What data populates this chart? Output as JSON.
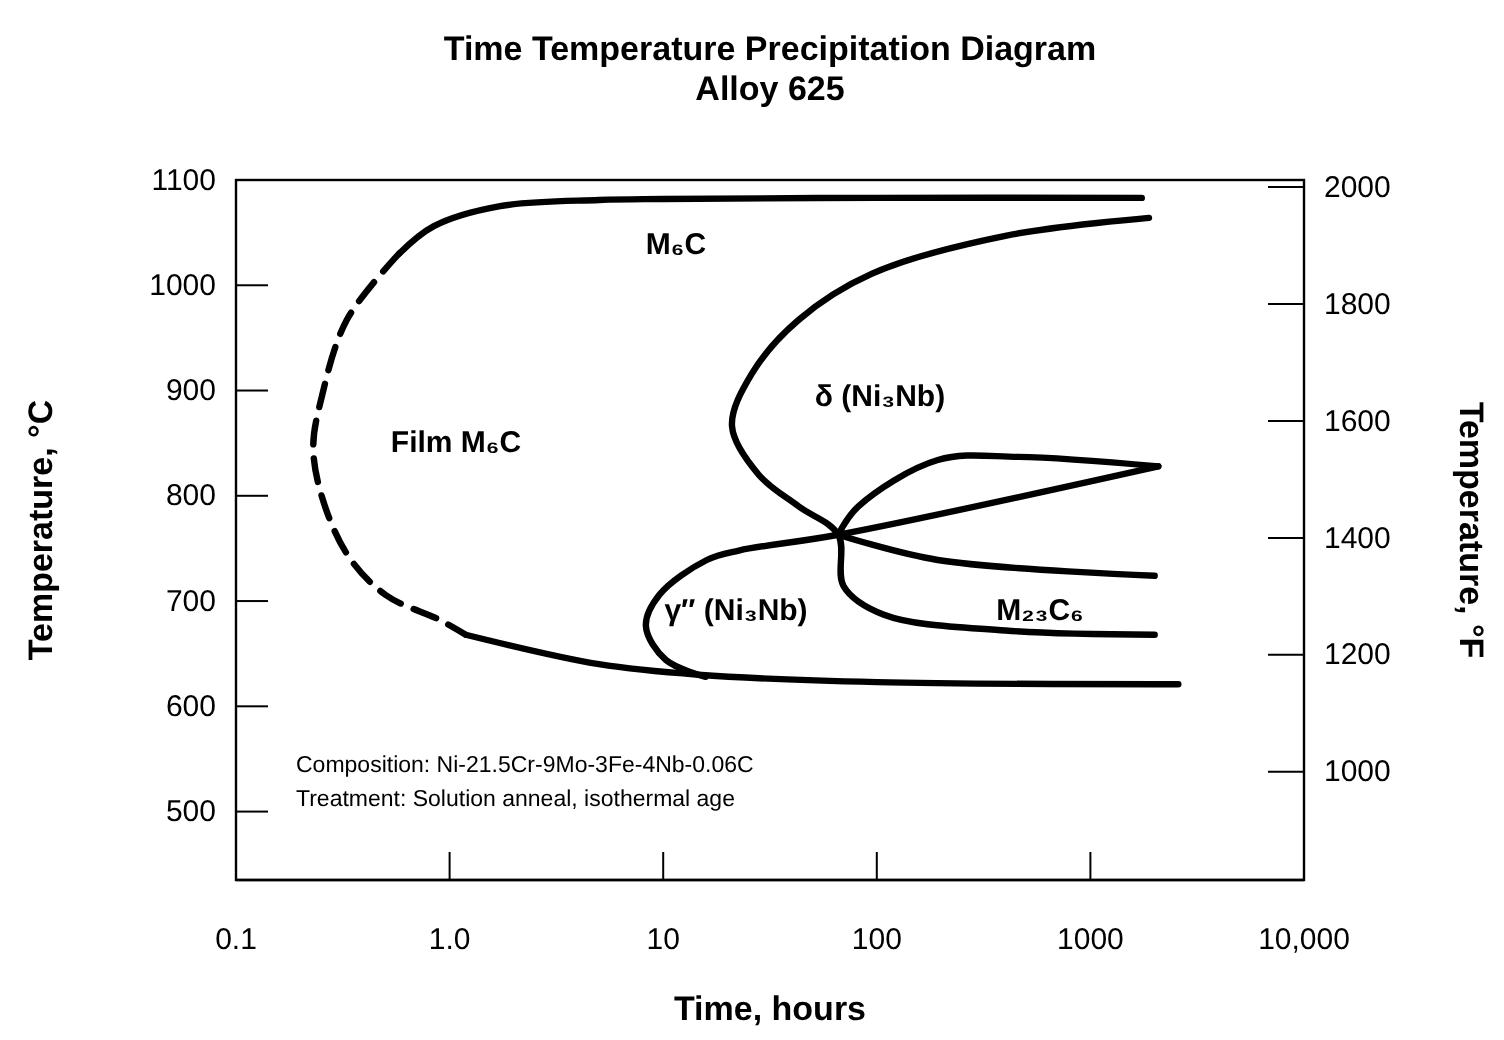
{
  "chart_data": {
    "type": "line",
    "title": "Time Temperature Precipitation Diagram",
    "subtitle": "Alloy 625",
    "xlabel": "Time, hours",
    "ylabel": "Temperature, °C",
    "y2label": "Temperature, °F",
    "log": "x",
    "xlim": [
      0.1,
      10000
    ],
    "xticks": [
      {
        "value": 0.1,
        "label": "0.1"
      },
      {
        "value": 1,
        "label": "1.0"
      },
      10,
      100,
      1000,
      {
        "value": 10000,
        "label": "10,000"
      }
    ],
    "ylim": [
      435,
      1100
    ],
    "yticks": [
      500,
      600,
      700,
      800,
      900,
      1000,
      1100
    ],
    "y2lim": [
      815,
      2012
    ],
    "y2ticks": [
      1000,
      1200,
      1400,
      1600,
      1800,
      2000
    ],
    "grid": false,
    "marker": "none",
    "series": [
      {
        "color": "#000000",
        "x": [
          1740,
          100,
          10,
          5,
          1.7,
          0.84,
          0.58
        ],
        "values": [
          1083,
          1083,
          1082,
          1081,
          1075,
          1056,
          1030
        ]
      },
      {
        "color": "#000000",
        "line_style": "dashed",
        "x": [
          0.58,
          0.33,
          0.25,
          0.23,
          0.25,
          0.33,
          0.5,
          0.9,
          1.19
        ],
        "values": [
          1030,
          967,
          891,
          847,
          802,
          745,
          706,
          682,
          668
        ]
      },
      {
        "color": "#000000",
        "x": [
          1.19,
          5,
          14.6,
          100,
          2580
        ],
        "values": [
          668,
          640,
          630,
          623,
          621
        ]
      },
      {
        "color": "#000000",
        "x": [
          1880,
          400,
          95,
          43,
          26,
          21,
          28,
          43,
          66,
          70,
          108,
          400,
          2000
        ],
        "values": [
          1064,
          1047,
          1011,
          967,
          916,
          866,
          820,
          790,
          763,
          714,
          687,
          672,
          668
        ]
      },
      {
        "color": "#000000",
        "x": [
          66,
          193,
          2000
        ],
        "values": [
          763,
          739,
          724
        ]
      },
      {
        "color": "#000000",
        "x": [
          2080,
          66,
          22.6,
          16,
          9.6,
          8.3,
          10.3,
          15.8
        ],
        "values": [
          828,
          763,
          748,
          739,
          706,
          676,
          644,
          628
        ]
      },
      {
        "color": "#000000",
        "x": [
          66,
          82,
          193,
          460,
          2080
        ],
        "values": [
          763,
          790,
          834,
          837,
          828
        ]
      }
    ],
    "annotations": [
      "M₆C",
      "Film M₆C",
      "δ (Ni₃Nb)",
      "γ″ (Ni₃Nb)",
      "M₂₃C₆",
      "Composition: Ni-21.5Cr-9Mo-3Fe-4Nb-0.06C",
      "Treatment: Solution anneal, isothermal age"
    ]
  }
}
